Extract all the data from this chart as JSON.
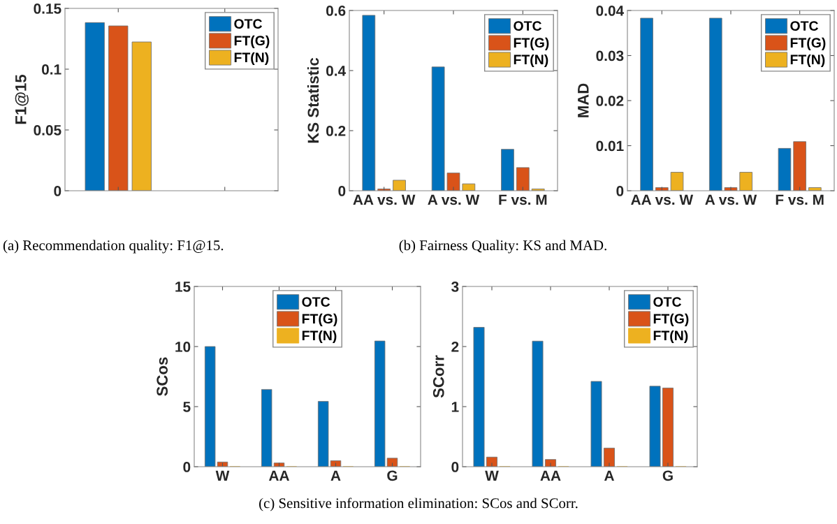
{
  "chart_data": [
    {
      "type": "bar",
      "ylabel": "F1@15",
      "categories": [
        null,
        null
      ],
      "ylim": [
        0,
        0.15
      ],
      "yticks": [
        0,
        0.05,
        0.1,
        0.15
      ],
      "legend": "top right",
      "grid": false,
      "series": [
        {
          "name": "OTC",
          "color": "#0072bd",
          "values": [
            0.1383,
            null
          ]
        },
        {
          "name": "FT(G)",
          "color": "#d95319",
          "values": [
            0.1356,
            null
          ]
        },
        {
          "name": "FT(N)",
          "color": "#edb120",
          "values": [
            0.1224,
            null
          ]
        }
      ],
      "annotations": [
        "(a) Recommendation quality: F1@15."
      ]
    },
    {
      "type": "bar",
      "ylabel": "KS Statistic",
      "categories": [
        "AA vs. W",
        "A vs. W",
        "F vs. M"
      ],
      "ylim": [
        0,
        0.6
      ],
      "yticks": [
        0,
        0.2,
        0.4,
        0.6
      ],
      "legend": "top right",
      "grid": false,
      "series": [
        {
          "name": "OTC",
          "color": "#0072bd",
          "values": [
            0.584,
            0.412,
            0.138
          ]
        },
        {
          "name": "FT(G)",
          "color": "#d95319",
          "values": [
            0.006,
            0.059,
            0.077
          ]
        },
        {
          "name": "FT(N)",
          "color": "#edb120",
          "values": [
            0.035,
            0.023,
            0.006
          ]
        }
      ],
      "annotations": [
        "(b) Fairness Quality: KS and MAD."
      ]
    },
    {
      "type": "bar",
      "ylabel": "MAD",
      "categories": [
        "AA vs. W",
        "A vs. W",
        "F vs. M"
      ],
      "ylim": [
        0,
        0.04
      ],
      "yticks": [
        0,
        0.01,
        0.02,
        0.03,
        0.04
      ],
      "legend": "top right",
      "grid": false,
      "series": [
        {
          "name": "OTC",
          "color": "#0072bd",
          "values": [
            0.0383,
            0.0383,
            0.0094
          ]
        },
        {
          "name": "FT(G)",
          "color": "#d95319",
          "values": [
            0.0007,
            0.0007,
            0.0109
          ]
        },
        {
          "name": "FT(N)",
          "color": "#edb120",
          "values": [
            0.0041,
            0.0041,
            0.0007
          ]
        }
      ]
    },
    {
      "type": "bar",
      "ylabel": "SCos",
      "categories": [
        "W",
        "AA",
        "A",
        "G"
      ],
      "ylim": [
        0,
        15
      ],
      "yticks": [
        0,
        5,
        10,
        15
      ],
      "legend": "top",
      "grid": false,
      "series": [
        {
          "name": "OTC",
          "color": "#0072bd",
          "values": [
            10.0,
            6.43,
            5.44,
            10.46
          ]
        },
        {
          "name": "FT(G)",
          "color": "#d95319",
          "values": [
            0.39,
            0.31,
            0.5,
            0.71
          ]
        },
        {
          "name": "FT(N)",
          "color": "#edb120",
          "values": [
            0,
            0,
            0,
            0
          ]
        }
      ],
      "annotations": [
        "(c) Sensitive information elimination: SCos and SCorr."
      ]
    },
    {
      "type": "bar",
      "ylabel": "SCorr",
      "categories": [
        "W",
        "AA",
        "A",
        "G"
      ],
      "ylim": [
        0,
        3
      ],
      "yticks": [
        0,
        1,
        2,
        3
      ],
      "legend": "top right",
      "grid": false,
      "series": [
        {
          "name": "OTC",
          "color": "#0072bd",
          "values": [
            2.32,
            2.09,
            1.42,
            1.34
          ]
        },
        {
          "name": "FT(G)",
          "color": "#d95319",
          "values": [
            0.16,
            0.12,
            0.31,
            1.31
          ]
        },
        {
          "name": "FT(N)",
          "color": "#edb120",
          "values": [
            0,
            0,
            0,
            0
          ]
        }
      ]
    }
  ]
}
